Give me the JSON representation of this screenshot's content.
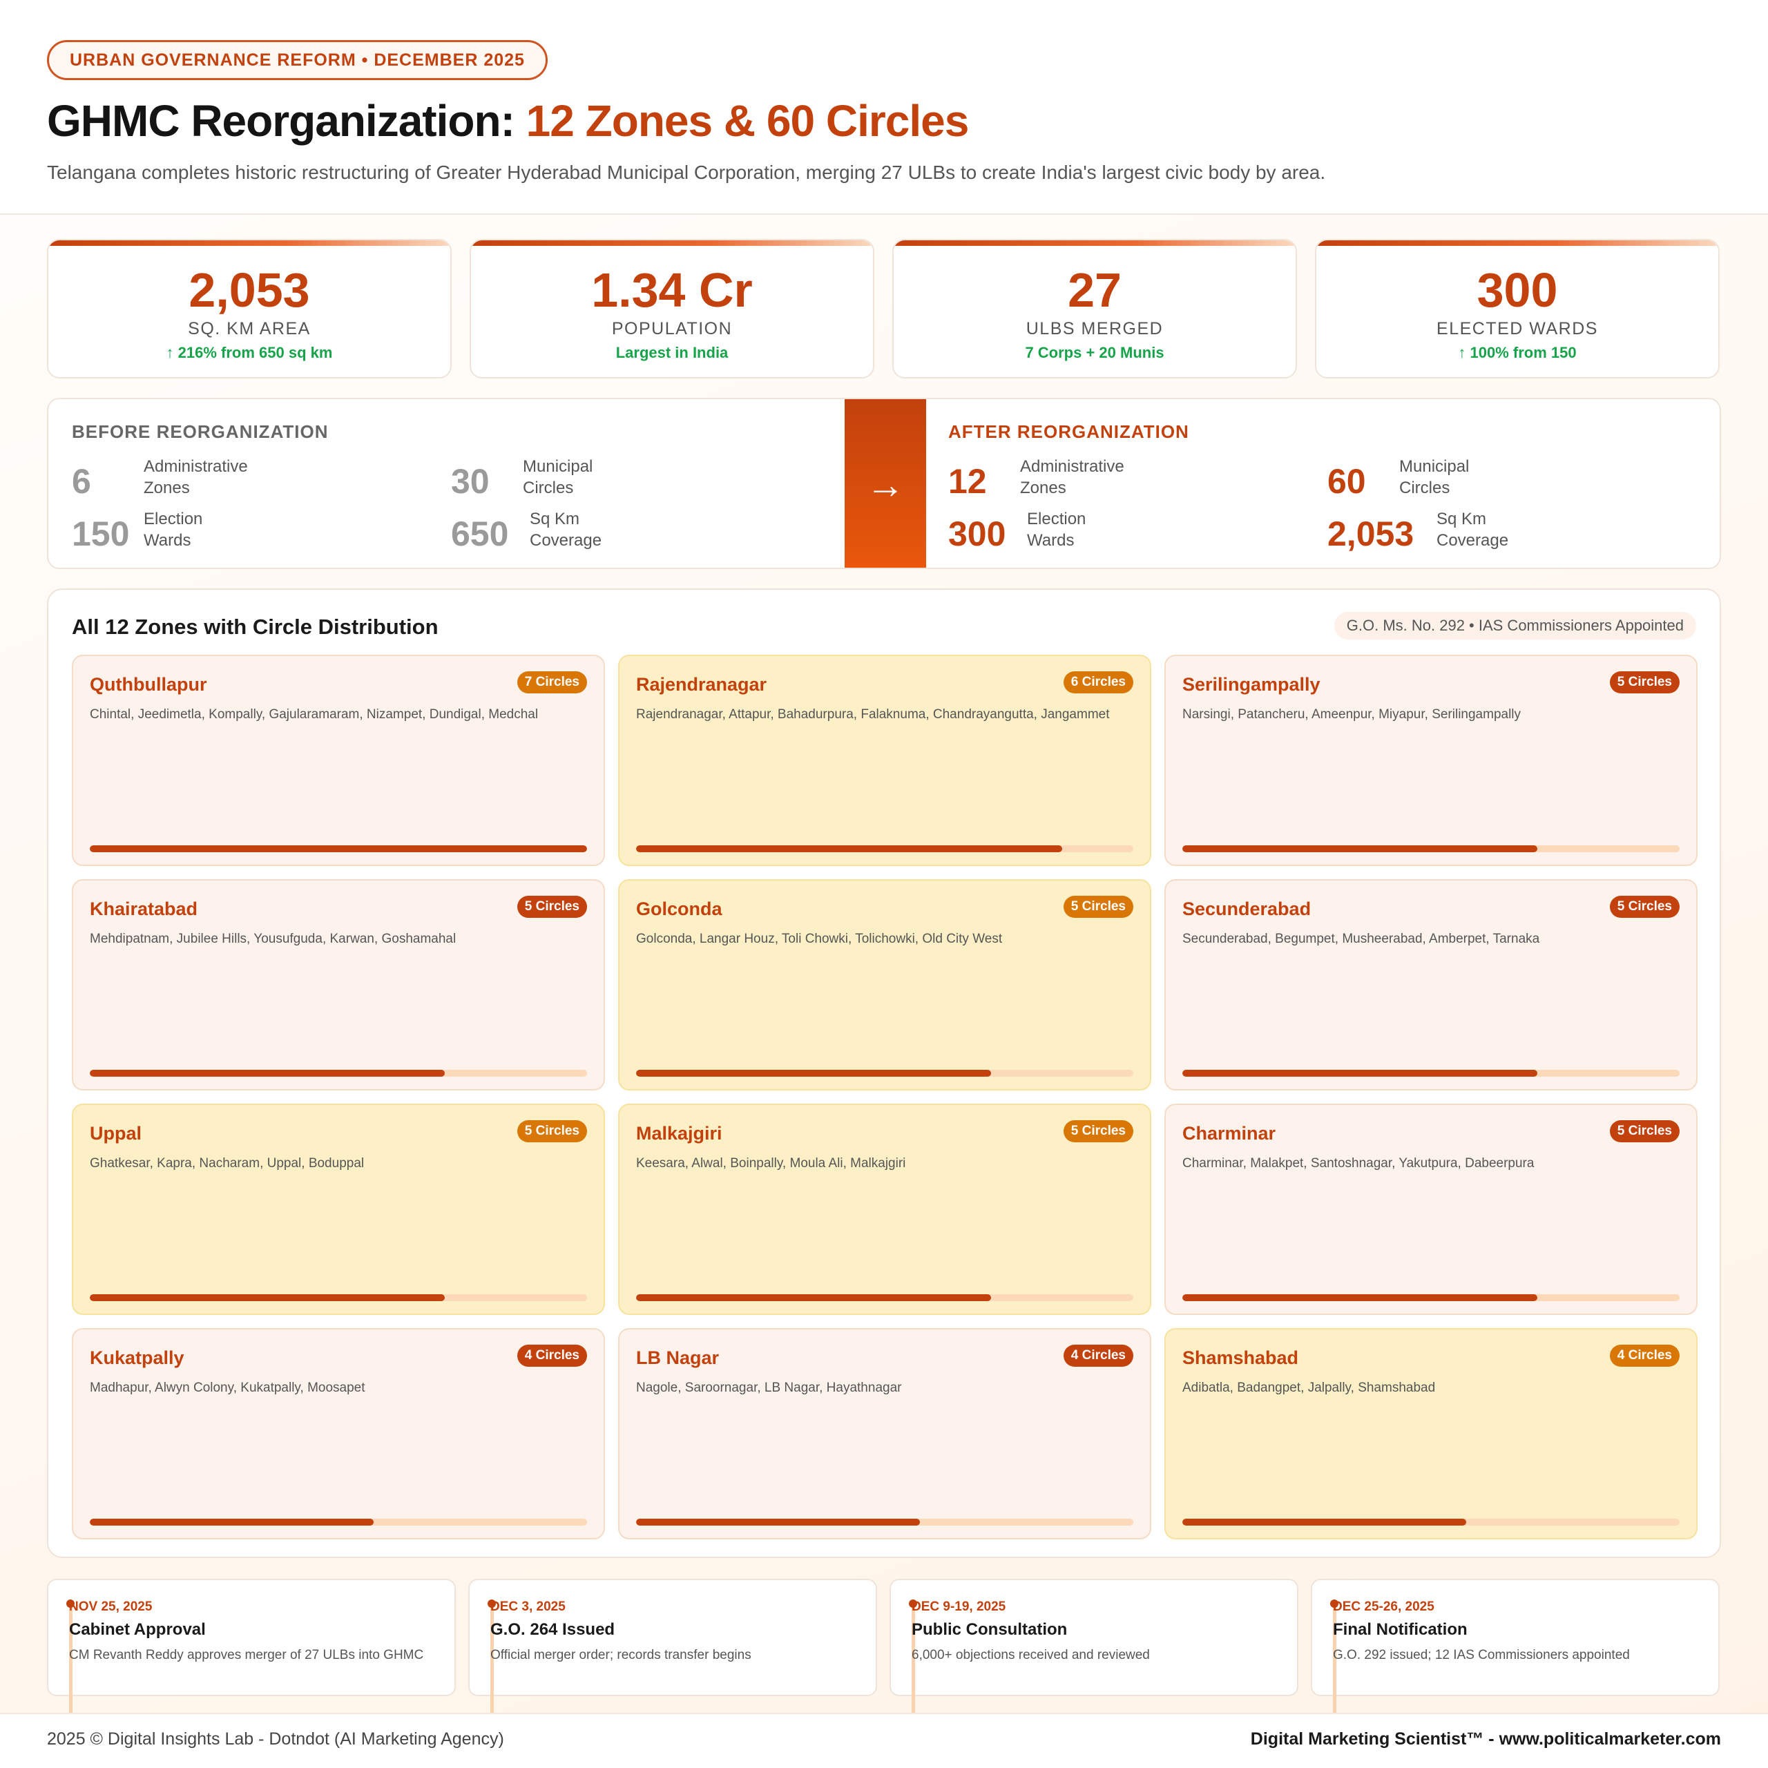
{
  "header": {
    "tagline": "URBAN GOVERNANCE REFORM • DECEMBER 2025",
    "title_main": "GHMC Reorganization: ",
    "title_accent": "12 Zones & 60 Circles",
    "subtitle": "Telangana completes historic restructuring of Greater Hyderabad Municipal Corporation, merging 27 ULBs to create India's largest civic body by area."
  },
  "stats": [
    {
      "value": "2,053",
      "label": "SQ. KM AREA",
      "sub": "↑ 216% from 650 sq km"
    },
    {
      "value": "1.34 Cr",
      "label": "POPULATION",
      "sub": "Largest in India"
    },
    {
      "value": "27",
      "label": "ULBS MERGED",
      "sub": "7 Corps + 20 Munis"
    },
    {
      "value": "300",
      "label": "ELECTED WARDS",
      "sub": "↑ 100% from 150"
    }
  ],
  "before": {
    "heading": "BEFORE REORGANIZATION",
    "items": [
      {
        "value": "6",
        "line1": "Administrative",
        "line2": "Zones"
      },
      {
        "value": "30",
        "line1": "Municipal",
        "line2": "Circles"
      },
      {
        "value": "150",
        "line1": "Election",
        "line2": "Wards"
      },
      {
        "value": "650",
        "line1": "Sq Km",
        "line2": "Coverage"
      }
    ]
  },
  "after": {
    "heading": "AFTER REORGANIZATION",
    "items": [
      {
        "value": "12",
        "line1": "Administrative",
        "line2": "Zones"
      },
      {
        "value": "60",
        "line1": "Municipal",
        "line2": "Circles"
      },
      {
        "value": "300",
        "line1": "Election",
        "line2": "Wards"
      },
      {
        "value": "2,053",
        "line1": "Sq Km",
        "line2": "Coverage"
      }
    ]
  },
  "arrow_icon": "arrow-right-icon",
  "zones_section": {
    "title": "All 12 Zones with Circle Distribution",
    "badge": "G.O. Ms. No. 292 • IAS Commissioners Appointed"
  },
  "zones": [
    {
      "name": "Quthbullapur",
      "badge": "7 Circles",
      "count": 7,
      "circles": "Chintal, Jeedimetla, Kompally, Gajularamaram, Nizampet, Dundigal, Medchal"
    },
    {
      "name": "Rajendranagar",
      "badge": "6 Circles",
      "count": 6,
      "circles": "Rajendranagar, Attapur, Bahadurpura, Falaknuma, Chandrayangutta, Jangammet"
    },
    {
      "name": "Serilingampally",
      "badge": "5 Circles",
      "count": 5,
      "circles": "Narsingi, Patancheru, Ameenpur, Miyapur, Serilingampally"
    },
    {
      "name": "Khairatabad",
      "badge": "5 Circles",
      "count": 5,
      "circles": "Mehdipatnam, Jubilee Hills, Yousufguda, Karwan, Goshamahal"
    },
    {
      "name": "Golconda",
      "badge": "5 Circles",
      "count": 5,
      "circles": "Golconda, Langar Houz, Toli Chowki, Tolichowki, Old City West"
    },
    {
      "name": "Secunderabad",
      "badge": "5 Circles",
      "count": 5,
      "circles": "Secunderabad, Begumpet, Musheerabad, Amberpet, Tarnaka"
    },
    {
      "name": "Uppal",
      "badge": "5 Circles",
      "count": 5,
      "circles": "Ghatkesar, Kapra, Nacharam, Uppal, Boduppal"
    },
    {
      "name": "Malkajgiri",
      "badge": "5 Circles",
      "count": 5,
      "circles": "Keesara, Alwal, Boinpally, Moula Ali, Malkajgiri"
    },
    {
      "name": "Charminar",
      "badge": "5 Circles",
      "count": 5,
      "circles": "Charminar, Malakpet, Santoshnagar, Yakutpura, Dabeerpura"
    },
    {
      "name": "Kukatpally",
      "badge": "4 Circles",
      "count": 4,
      "circles": "Madhapur, Alwyn Colony, Kukatpally, Moosapet"
    },
    {
      "name": "LB Nagar",
      "badge": "4 Circles",
      "count": 4,
      "circles": "Nagole, Saroornagar, LB Nagar, Hayathnagar"
    },
    {
      "name": "Shamshabad",
      "badge": "4 Circles",
      "count": 4,
      "circles": "Adibatla, Badangpet, Jalpally, Shamshabad"
    }
  ],
  "timeline": [
    {
      "date": "NOV 25, 2025",
      "event": "Cabinet Approval",
      "desc": "CM Revanth Reddy approves merger of 27 ULBs into GHMC"
    },
    {
      "date": "DEC 3, 2025",
      "event": "G.O. 264 Issued",
      "desc": "Official merger order; records transfer begins"
    },
    {
      "date": "DEC 9-19, 2025",
      "event": "Public Consultation",
      "desc": "6,000+ objections received and reviewed"
    },
    {
      "date": "DEC 25-26, 2025",
      "event": "Final Notification",
      "desc": "G.O. 292 issued; 12 IAS Commissioners appointed"
    }
  ],
  "footer": {
    "left": "2025 © Digital Insights Lab - Dotndot (AI Marketing Agency)",
    "right": "Digital Marketing Scientist™ - www.politicalmarketer.com"
  }
}
